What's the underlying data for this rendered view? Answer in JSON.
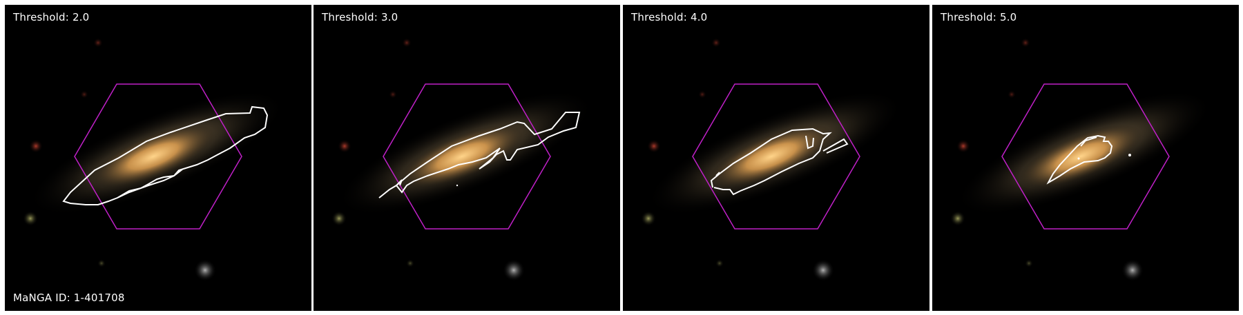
{
  "panels": [
    {
      "threshold_label": "Threshold: 2.0"
    },
    {
      "threshold_label": "Threshold: 3.0"
    },
    {
      "threshold_label": "Threshold: 4.0"
    },
    {
      "threshold_label": "Threshold: 5.0"
    }
  ],
  "manga_id_label": "MaNGA ID: 1-401708",
  "colors": {
    "hexagon": "#c020c8",
    "contour": "#ffffff",
    "galaxy_core": "#f0b460",
    "background": "#000000"
  }
}
